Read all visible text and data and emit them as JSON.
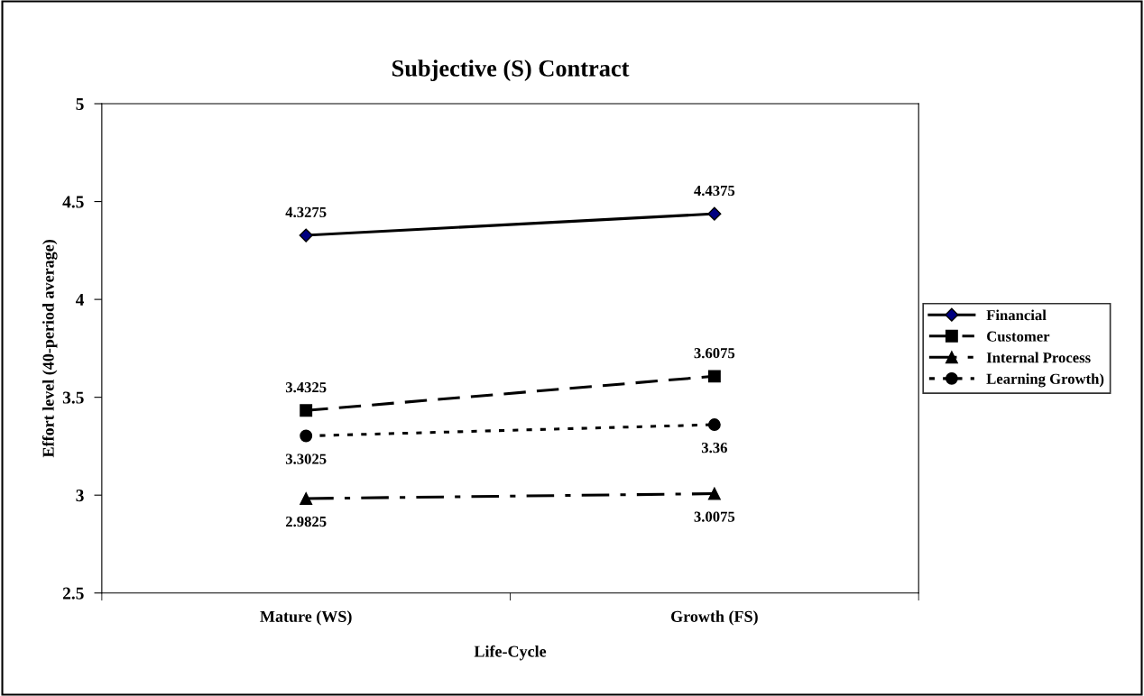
{
  "chart_data": {
    "type": "line",
    "title": "Subjective (S) Contract",
    "xlabel": "Life-Cycle",
    "ylabel": "Effort level (40-period average)",
    "categories": [
      "Mature (WS)",
      "Growth (FS)"
    ],
    "series": [
      {
        "name": "Financial",
        "color": "#000080",
        "values": [
          4.3275,
          4.4375
        ],
        "marker": "diamond",
        "line_style": "solid"
      },
      {
        "name": "Customer",
        "color": "#000000",
        "values": [
          3.4325,
          3.6075
        ],
        "marker": "square",
        "line_style": "dashed"
      },
      {
        "name": "Internal Process",
        "color": "#000000",
        "values": [
          2.9825,
          3.0075
        ],
        "marker": "triangle",
        "line_style": "dashdot"
      },
      {
        "name": "Learning Growth)",
        "color": "#000000",
        "values": [
          3.3025,
          3.36
        ],
        "marker": "circle",
        "line_style": "dotted"
      }
    ],
    "ylim": [
      2.5,
      5
    ],
    "yticks": [
      2.5,
      3,
      3.5,
      4,
      4.5,
      5
    ],
    "grid": false,
    "legend": "right",
    "data_labels": true
  }
}
